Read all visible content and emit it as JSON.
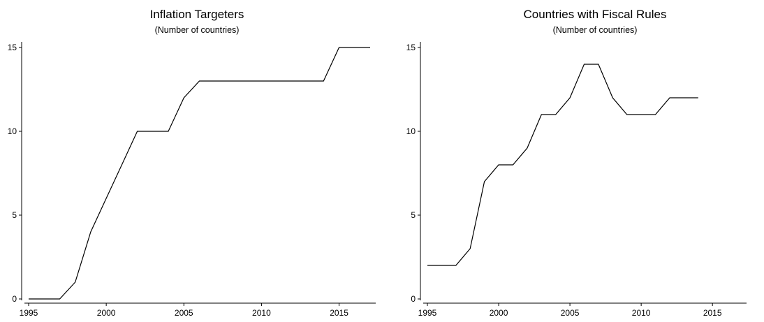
{
  "chart_data": [
    {
      "type": "line",
      "title": "Inflation Targeters",
      "subtitle": "(Number of countries)",
      "xlabel": "",
      "ylabel": "",
      "xlim": [
        1995,
        2017
      ],
      "ylim": [
        0,
        15
      ],
      "x_ticks": [
        1995,
        2000,
        2005,
        2010,
        2015
      ],
      "y_ticks": [
        0,
        5,
        10,
        15
      ],
      "grid": false,
      "series": [
        {
          "x": [
            1995,
            1996,
            1997,
            1998,
            1999,
            2000,
            2001,
            2002,
            2003,
            2004,
            2005,
            2006,
            2007,
            2008,
            2009,
            2010,
            2011,
            2012,
            2013,
            2014,
            2015,
            2016,
            2017
          ],
          "values": [
            0,
            0,
            0,
            1,
            4,
            6,
            8,
            10,
            10,
            10,
            12,
            13,
            13,
            13,
            13,
            13,
            13,
            13,
            13,
            13,
            15,
            15,
            15
          ]
        }
      ]
    },
    {
      "type": "line",
      "title": "Countries with Fiscal Rules",
      "subtitle": "(Number of countries)",
      "xlabel": "",
      "ylabel": "",
      "xlim": [
        1995,
        2017
      ],
      "ylim": [
        0,
        15
      ],
      "x_ticks": [
        1995,
        2000,
        2005,
        2010,
        2015
      ],
      "y_ticks": [
        0,
        5,
        10,
        15
      ],
      "grid": false,
      "series": [
        {
          "x": [
            1995,
            1996,
            1997,
            1998,
            1999,
            2000,
            2001,
            2002,
            2003,
            2004,
            2005,
            2006,
            2007,
            2008,
            2009,
            2010,
            2011,
            2012,
            2013,
            2014
          ],
          "values": [
            2,
            2,
            2,
            3,
            7,
            8,
            8,
            9,
            11,
            11,
            12,
            14,
            14,
            12,
            11,
            11,
            11,
            12,
            12,
            12
          ]
        }
      ]
    }
  ]
}
